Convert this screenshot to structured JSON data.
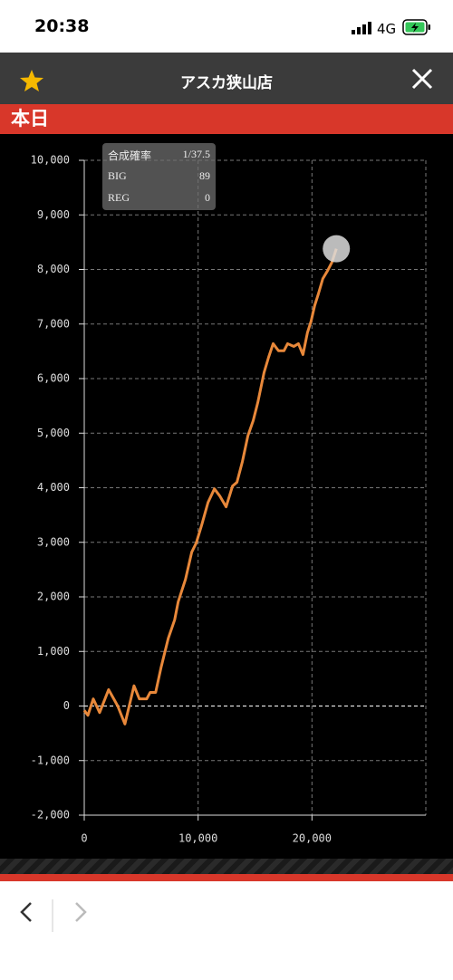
{
  "status_bar": {
    "time": "20:38",
    "network": "4G"
  },
  "header": {
    "title": "アスカ狭山店"
  },
  "section": {
    "title": "本日"
  },
  "stats": [
    {
      "label": "合成確率",
      "value": "1/37.5"
    },
    {
      "label": "BIG",
      "value": 89
    },
    {
      "label": "REG",
      "value": 0
    }
  ],
  "chart_data": {
    "type": "line",
    "color": "#e8883a",
    "x": [
      0,
      320,
      790,
      1350,
      2140,
      2940,
      3570,
      4370,
      4840,
      5480,
      5790,
      6270,
      6750,
      7380,
      7940,
      8250,
      8890,
      9440,
      9840,
      10320,
      10870,
      11430,
      11900,
      12460,
      13020,
      13410,
      13890,
      14370,
      14840,
      15240,
      15790,
      16190,
      16590,
      17060,
      17540,
      17860,
      18410,
      18810,
      19210,
      19600,
      19920,
      20240,
      20560,
      20950,
      21350,
      21750,
      22140
    ],
    "values": [
      -80,
      -170,
      130,
      -120,
      300,
      0,
      -330,
      370,
      130,
      130,
      250,
      250,
      710,
      1240,
      1580,
      1910,
      2320,
      2820,
      2990,
      3320,
      3730,
      3980,
      3850,
      3650,
      4030,
      4100,
      4480,
      4950,
      5230,
      5560,
      6110,
      6390,
      6640,
      6510,
      6510,
      6640,
      6590,
      6640,
      6440,
      6840,
      7050,
      7340,
      7550,
      7830,
      7970,
      8130,
      8380
    ],
    "xlim": [
      0,
      30000
    ],
    "xticks": [
      0,
      {
        "value": 10000,
        "label": "10,000"
      },
      {
        "value": 20000,
        "label": "20,000"
      }
    ],
    "ylim": [
      -2000,
      10000
    ],
    "yticks": [
      {
        "value": -2000,
        "label": "-2,000"
      },
      {
        "value": -1000,
        "label": "-1,000"
      },
      0,
      {
        "value": 1000,
        "label": "1,000"
      },
      {
        "value": 2000,
        "label": "2,000"
      },
      {
        "value": 3000,
        "label": "3,000"
      },
      {
        "value": 4000,
        "label": "4,000"
      },
      {
        "value": 5000,
        "label": "5,000"
      },
      {
        "value": 6000,
        "label": "6,000"
      },
      {
        "value": 7000,
        "label": "7,000"
      },
      {
        "value": 8000,
        "label": "8,000"
      },
      {
        "value": 9000,
        "label": "9,000"
      },
      {
        "value": 10000,
        "label": "10,000"
      }
    ],
    "grid": true
  }
}
